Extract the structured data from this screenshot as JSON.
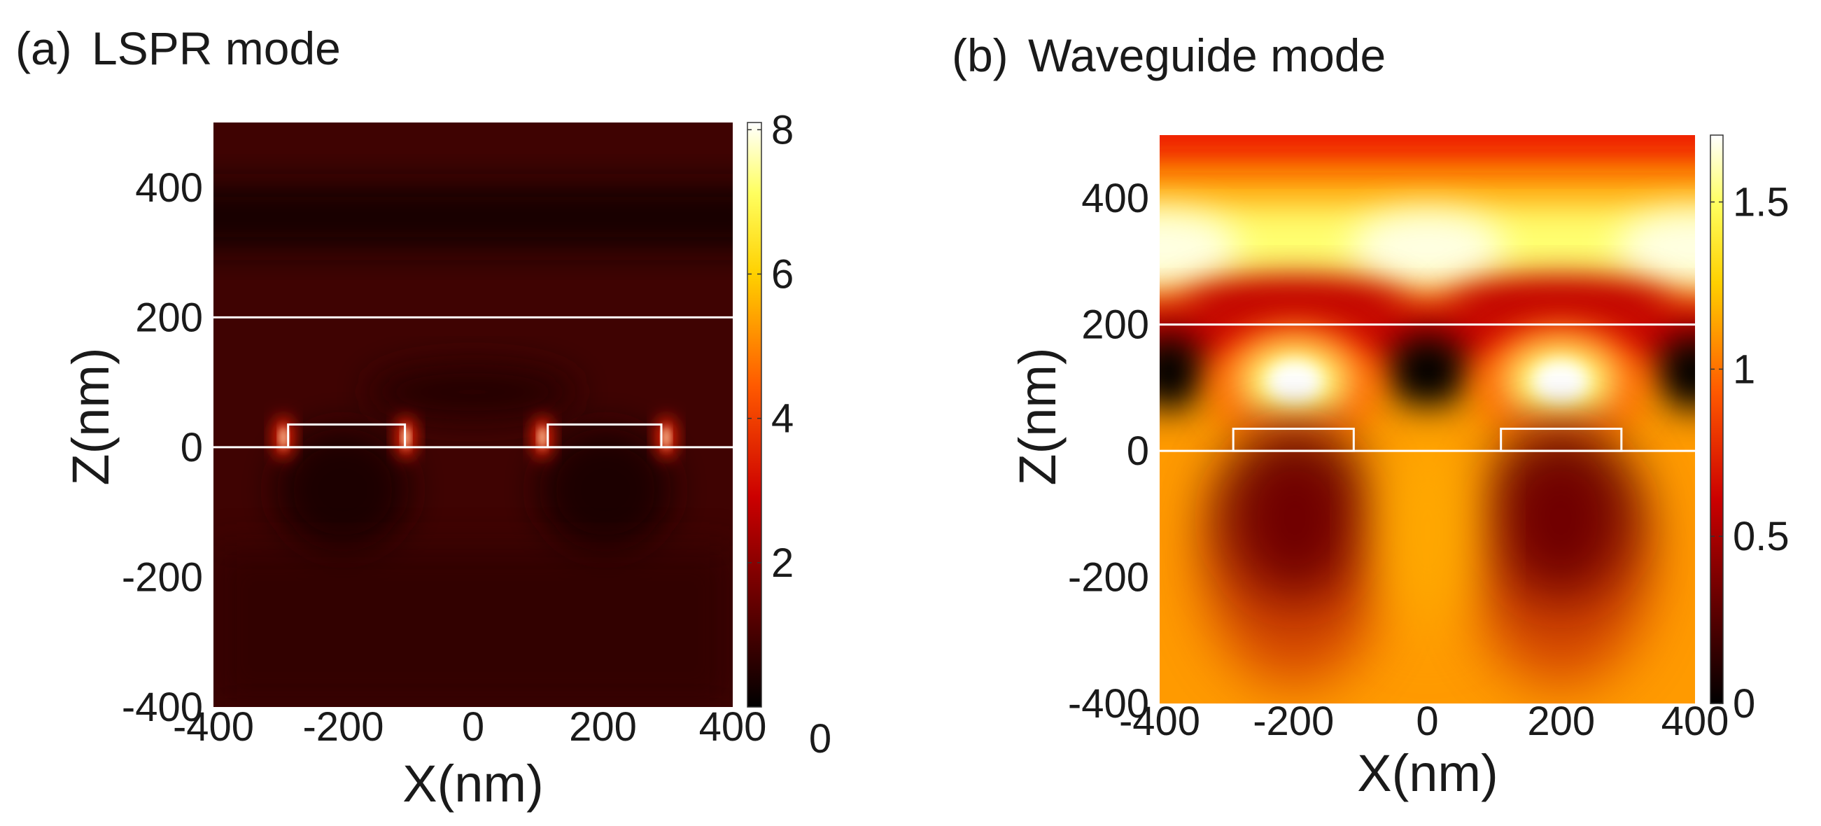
{
  "chart_data": [
    {
      "type": "heatmap",
      "panel_label": "(a)",
      "title": "LSPR mode",
      "xlabel": "X(nm)",
      "ylabel": "Z(nm)",
      "xlim": [
        -400,
        400
      ],
      "ylim": [
        -400,
        500
      ],
      "x_ticks": [
        -400,
        -200,
        0,
        200,
        400
      ],
      "x_tick_labels": [
        "-400",
        "-200",
        "0",
        "200",
        "400"
      ],
      "y_ticks": [
        -400,
        -200,
        0,
        200,
        400
      ],
      "y_tick_labels": [
        "-400",
        "-200",
        "0",
        "200",
        "400"
      ],
      "colorbar": {
        "range": [
          0,
          8.1
        ],
        "ticks": [
          2,
          4,
          6,
          8
        ],
        "tick_labels": [
          "2",
          "4",
          "6",
          "8"
        ],
        "extra_label": "0"
      },
      "interfaces_nm": [
        0,
        200
      ],
      "particles": [
        {
          "x_min": -285,
          "x_max": -105,
          "z_min": 0,
          "z_max": 35
        },
        {
          "x_min": 115,
          "x_max": 290,
          "z_min": 0,
          "z_max": 35
        }
      ],
      "field_description": "near-zero field everywhere except hot spots (~8) at particle edges"
    },
    {
      "type": "heatmap",
      "panel_label": "(b)",
      "title": "Waveguide mode",
      "xlabel": "X(nm)",
      "ylabel": "Z(nm)",
      "xlim": [
        -400,
        400
      ],
      "ylim": [
        -400,
        500
      ],
      "x_ticks": [
        -400,
        -200,
        0,
        200,
        400
      ],
      "x_tick_labels": [
        "-400",
        "-200",
        "0",
        "200",
        "400"
      ],
      "y_ticks": [
        -400,
        -200,
        0,
        200,
        400
      ],
      "y_tick_labels": [
        "-400",
        "-200",
        "0",
        "200",
        "400"
      ],
      "colorbar": {
        "range": [
          0,
          1.7
        ],
        "ticks": [
          0,
          0.5,
          1,
          1.5
        ],
        "tick_labels": [
          "0",
          "0.5",
          "1",
          "1.5"
        ]
      },
      "interfaces_nm": [
        0,
        200
      ],
      "particles": [
        {
          "x_min": -290,
          "x_max": -110,
          "z_min": 0,
          "z_max": 35
        },
        {
          "x_min": 110,
          "x_max": 290,
          "z_min": 0,
          "z_max": 35
        }
      ],
      "field_description": "bright lobes (~1.7) above particles at z~100 and a bright band at z~300-400; dark nodes between"
    }
  ]
}
